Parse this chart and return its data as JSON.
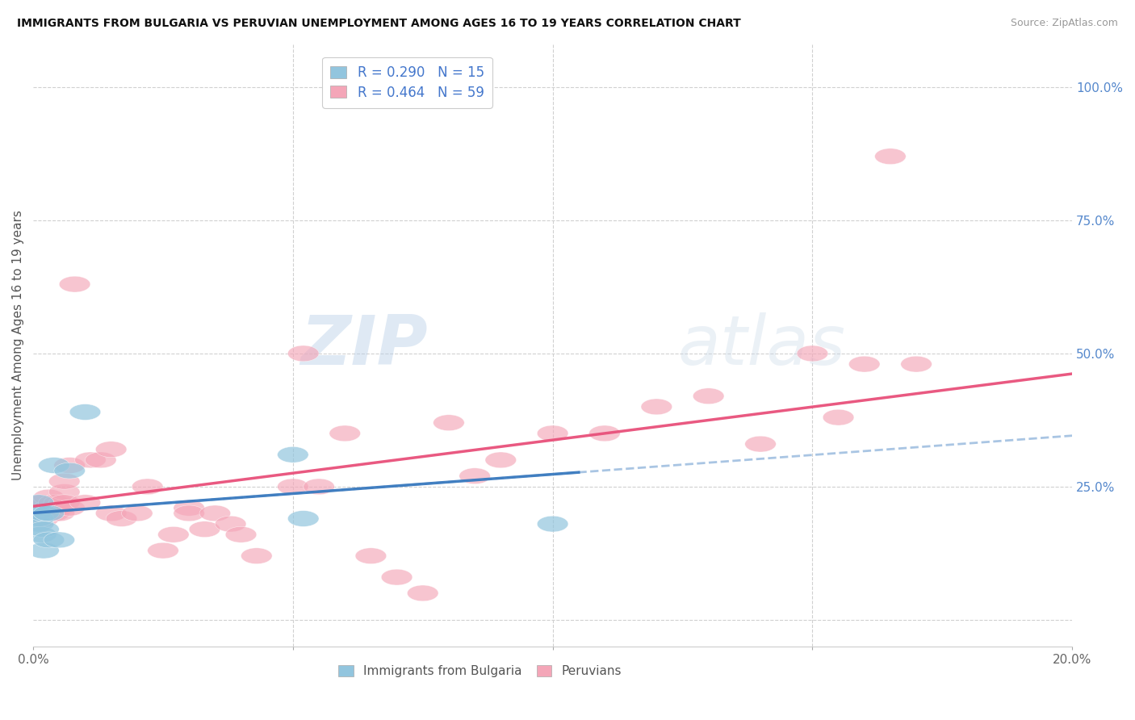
{
  "title": "IMMIGRANTS FROM BULGARIA VS PERUVIAN UNEMPLOYMENT AMONG AGES 16 TO 19 YEARS CORRELATION CHART",
  "source": "Source: ZipAtlas.com",
  "ylabel": "Unemployment Among Ages 16 to 19 years",
  "xlim": [
    0.0,
    0.2
  ],
  "ylim": [
    -0.05,
    1.08
  ],
  "xticks": [
    0.0,
    0.05,
    0.1,
    0.15,
    0.2
  ],
  "xticklabels": [
    "0.0%",
    "",
    "",
    "",
    "20.0%"
  ],
  "yticks_right": [
    0.0,
    0.25,
    0.5,
    0.75,
    1.0
  ],
  "yticklabels_right": [
    "",
    "25.0%",
    "50.0%",
    "75.0%",
    "100.0%"
  ],
  "grid_color": "#d0d0d0",
  "bg_color": "#ffffff",
  "blue_color": "#92c5de",
  "pink_color": "#f4a6b8",
  "blue_line_color": "#3a7abf",
  "pink_line_color": "#e8507a",
  "blue_dash_color": "#a0bfe0",
  "bulgaria_x": [
    0.0005,
    0.001,
    0.001,
    0.001,
    0.0015,
    0.002,
    0.002,
    0.002,
    0.003,
    0.003,
    0.004,
    0.005,
    0.007,
    0.01,
    0.05,
    0.052,
    0.1
  ],
  "bulgaria_y": [
    0.2,
    0.18,
    0.22,
    0.19,
    0.16,
    0.17,
    0.2,
    0.13,
    0.2,
    0.15,
    0.29,
    0.15,
    0.28,
    0.39,
    0.31,
    0.19,
    0.18
  ],
  "peru_x": [
    0.0005,
    0.001,
    0.001,
    0.0015,
    0.002,
    0.002,
    0.002,
    0.003,
    0.003,
    0.003,
    0.004,
    0.004,
    0.004,
    0.005,
    0.005,
    0.005,
    0.006,
    0.006,
    0.006,
    0.007,
    0.007,
    0.008,
    0.01,
    0.011,
    0.013,
    0.015,
    0.015,
    0.017,
    0.02,
    0.022,
    0.025,
    0.027,
    0.03,
    0.03,
    0.033,
    0.035,
    0.038,
    0.04,
    0.043,
    0.05,
    0.052,
    0.055,
    0.06,
    0.065,
    0.07,
    0.075,
    0.08,
    0.085,
    0.09,
    0.1,
    0.11,
    0.12,
    0.13,
    0.14,
    0.15,
    0.155,
    0.16,
    0.165,
    0.17
  ],
  "peru_y": [
    0.21,
    0.2,
    0.21,
    0.2,
    0.2,
    0.22,
    0.19,
    0.21,
    0.23,
    0.2,
    0.22,
    0.2,
    0.22,
    0.21,
    0.2,
    0.22,
    0.24,
    0.26,
    0.22,
    0.29,
    0.21,
    0.63,
    0.22,
    0.3,
    0.3,
    0.32,
    0.2,
    0.19,
    0.2,
    0.25,
    0.13,
    0.16,
    0.21,
    0.2,
    0.17,
    0.2,
    0.18,
    0.16,
    0.12,
    0.25,
    0.5,
    0.25,
    0.35,
    0.12,
    0.08,
    0.05,
    0.37,
    0.27,
    0.3,
    0.35,
    0.35,
    0.4,
    0.42,
    0.33,
    0.5,
    0.38,
    0.48,
    0.87,
    0.48
  ]
}
